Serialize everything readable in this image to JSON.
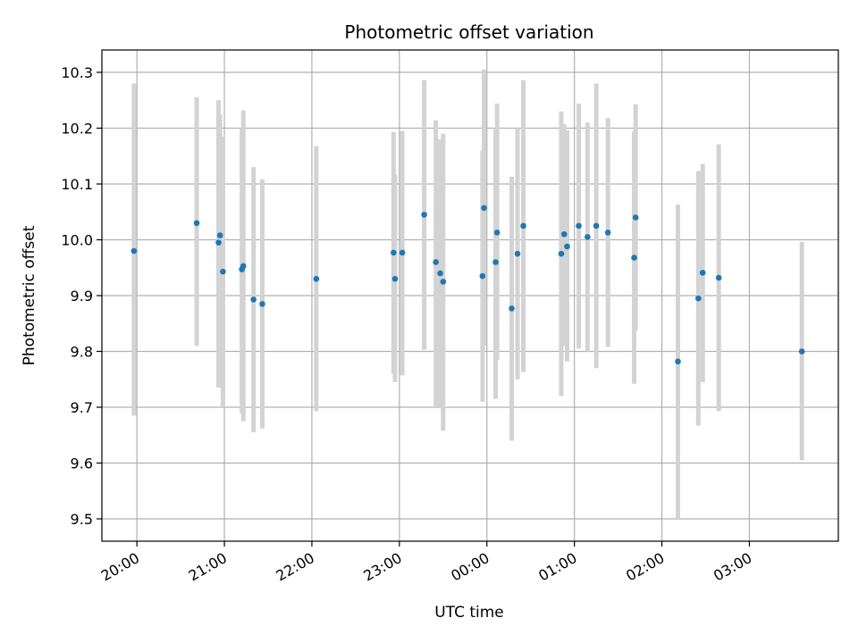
{
  "chart_data": {
    "type": "scatter",
    "title": "Photometric offset variation",
    "xlabel": "UTC time",
    "ylabel": "Photometric offset",
    "x_tick_labels": [
      "20:00",
      "21:00",
      "22:00",
      "23:00",
      "00:00",
      "01:00",
      "02:00",
      "03:00"
    ],
    "x_ticks_minutes": [
      0,
      60,
      120,
      180,
      240,
      300,
      360,
      420
    ],
    "xlim_minutes": [
      -24,
      481
    ],
    "ylim": [
      9.46,
      10.34
    ],
    "y_ticks": [
      9.5,
      9.6,
      9.7,
      9.8,
      9.9,
      10.0,
      10.1,
      10.2,
      10.3
    ],
    "y_tick_labels": [
      "9.5",
      "9.6",
      "9.7",
      "9.8",
      "9.9",
      "10.0",
      "10.1",
      "10.2",
      "10.3"
    ],
    "grid": true,
    "colors": {
      "marker": "#1f77b4",
      "errorbar": "#d3d3d3",
      "grid": "#b0b0b0"
    },
    "points": [
      {
        "t": "19:58",
        "y": 9.98,
        "lo": 9.685,
        "hi": 10.28
      },
      {
        "t": "20:41",
        "y": 10.03,
        "lo": 9.81,
        "hi": 10.255
      },
      {
        "t": "20:56",
        "y": 9.995,
        "lo": 9.735,
        "hi": 10.25
      },
      {
        "t": "20:57",
        "y": 10.008,
        "lo": 9.785,
        "hi": 10.225
      },
      {
        "t": "20:59",
        "y": 9.943,
        "lo": 9.7,
        "hi": 10.185
      },
      {
        "t": "21:12",
        "y": 9.947,
        "lo": 9.69,
        "hi": 10.2
      },
      {
        "t": "21:13",
        "y": 9.953,
        "lo": 9.675,
        "hi": 10.232
      },
      {
        "t": "21:20",
        "y": 9.893,
        "lo": 9.655,
        "hi": 10.13
      },
      {
        "t": "21:26",
        "y": 9.885,
        "lo": 9.662,
        "hi": 10.108
      },
      {
        "t": "22:03",
        "y": 9.93,
        "lo": 9.693,
        "hi": 10.168
      },
      {
        "t": "22:56",
        "y": 9.977,
        "lo": 9.76,
        "hi": 10.193
      },
      {
        "t": "22:57",
        "y": 9.93,
        "lo": 9.745,
        "hi": 10.117
      },
      {
        "t": "23:02",
        "y": 9.977,
        "lo": 9.757,
        "hi": 10.195
      },
      {
        "t": "23:17",
        "y": 10.045,
        "lo": 9.803,
        "hi": 10.286
      },
      {
        "t": "23:25",
        "y": 9.96,
        "lo": 9.7,
        "hi": 10.214
      },
      {
        "t": "23:28",
        "y": 9.94,
        "lo": 9.7,
        "hi": 10.18
      },
      {
        "t": "23:30",
        "y": 9.925,
        "lo": 9.658,
        "hi": 10.19
      },
      {
        "t": "23:58",
        "y": 10.057,
        "lo": 9.81,
        "hi": 10.305
      },
      {
        "t": "23:57",
        "y": 9.935,
        "lo": 9.71,
        "hi": 10.16
      },
      {
        "t": "00:06",
        "y": 9.96,
        "lo": 9.715,
        "hi": 10.2
      },
      {
        "t": "00:07",
        "y": 10.013,
        "lo": 9.785,
        "hi": 10.244
      },
      {
        "t": "00:17",
        "y": 9.877,
        "lo": 9.64,
        "hi": 10.113
      },
      {
        "t": "00:21",
        "y": 9.975,
        "lo": 9.75,
        "hi": 10.2
      },
      {
        "t": "00:25",
        "y": 10.025,
        "lo": 9.763,
        "hi": 10.286
      },
      {
        "t": "00:51",
        "y": 9.975,
        "lo": 9.72,
        "hi": 10.23
      },
      {
        "t": "00:53",
        "y": 10.01,
        "lo": 9.81,
        "hi": 10.207
      },
      {
        "t": "00:55",
        "y": 9.988,
        "lo": 9.782,
        "hi": 10.196
      },
      {
        "t": "01:03",
        "y": 10.025,
        "lo": 9.805,
        "hi": 10.244
      },
      {
        "t": "01:09",
        "y": 10.005,
        "lo": 9.8,
        "hi": 10.21
      },
      {
        "t": "01:15",
        "y": 10.025,
        "lo": 9.77,
        "hi": 10.28
      },
      {
        "t": "01:23",
        "y": 10.013,
        "lo": 9.808,
        "hi": 10.218
      },
      {
        "t": "01:41",
        "y": 9.968,
        "lo": 9.742,
        "hi": 10.194
      },
      {
        "t": "01:42",
        "y": 10.04,
        "lo": 9.838,
        "hi": 10.243
      },
      {
        "t": "02:11",
        "y": 9.782,
        "lo": 9.5,
        "hi": 10.063
      },
      {
        "t": "02:25",
        "y": 9.895,
        "lo": 9.667,
        "hi": 10.123
      },
      {
        "t": "02:28",
        "y": 9.941,
        "lo": 9.745,
        "hi": 10.136
      },
      {
        "t": "02:39",
        "y": 9.932,
        "lo": 9.693,
        "hi": 10.171
      },
      {
        "t": "03:36",
        "y": 9.8,
        "lo": 9.605,
        "hi": 9.996
      }
    ]
  }
}
